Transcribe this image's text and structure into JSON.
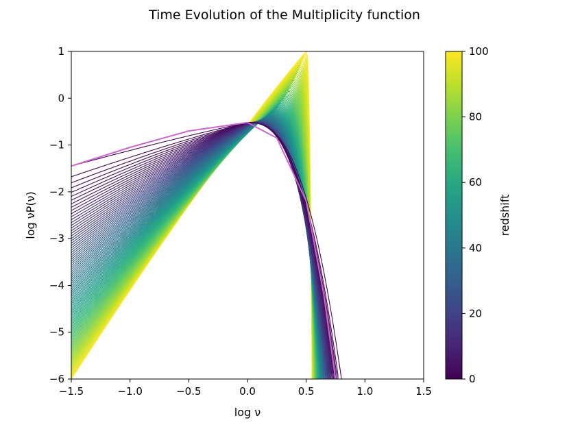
{
  "chart_data": {
    "type": "line",
    "title": "Time Evolution of the Multiplicity function",
    "xlabel": "log ν",
    "ylabel": "log νP(ν)",
    "xlim": [
      -1.5,
      1.5
    ],
    "ylim": [
      -6,
      1
    ],
    "xticks": [
      -1.5,
      -1.0,
      -0.5,
      0.0,
      0.5,
      1.0,
      1.5
    ],
    "xtick_labels": [
      "−1.5",
      "−1.0",
      "−0.5",
      "0.0",
      "0.5",
      "1.0",
      "1.5"
    ],
    "yticks": [
      -6,
      -5,
      -4,
      -3,
      -2,
      -1,
      0,
      1
    ],
    "ytick_labels": [
      "−6",
      "−5",
      "−4",
      "−3",
      "−2",
      "−1",
      "0",
      "1"
    ],
    "grid": false,
    "series_family": {
      "variable": "redshift",
      "redshift_range": [
        0,
        100
      ],
      "count": 101,
      "colormap": "viridis",
      "peak_log_nu": [
        0.0,
        0.5
      ],
      "peak_log_nuP": [
        -0.52,
        1.0
      ],
      "low_end_log_nuP_at_x_min": [
        -1.45,
        -6.0
      ],
      "high_end_cutoff_log_nu": [
        0.8,
        0.55
      ],
      "reference_curve": {
        "description": "redshift 0 curve",
        "color": "#cc66cc",
        "points": [
          [
            -1.5,
            -1.45
          ],
          [
            -1.0,
            -1.05
          ],
          [
            -0.5,
            -0.7
          ],
          [
            0.0,
            -0.52
          ],
          [
            0.25,
            -0.85
          ],
          [
            0.5,
            -2.2
          ],
          [
            0.65,
            -4.2
          ],
          [
            0.75,
            -6.0
          ]
        ]
      }
    },
    "colorbar": {
      "label": "redshift",
      "range": [
        0,
        100
      ],
      "ticks": [
        0,
        20,
        40,
        60,
        80,
        100
      ],
      "tick_labels": [
        "0",
        "20",
        "40",
        "60",
        "80",
        "100"
      ]
    }
  }
}
